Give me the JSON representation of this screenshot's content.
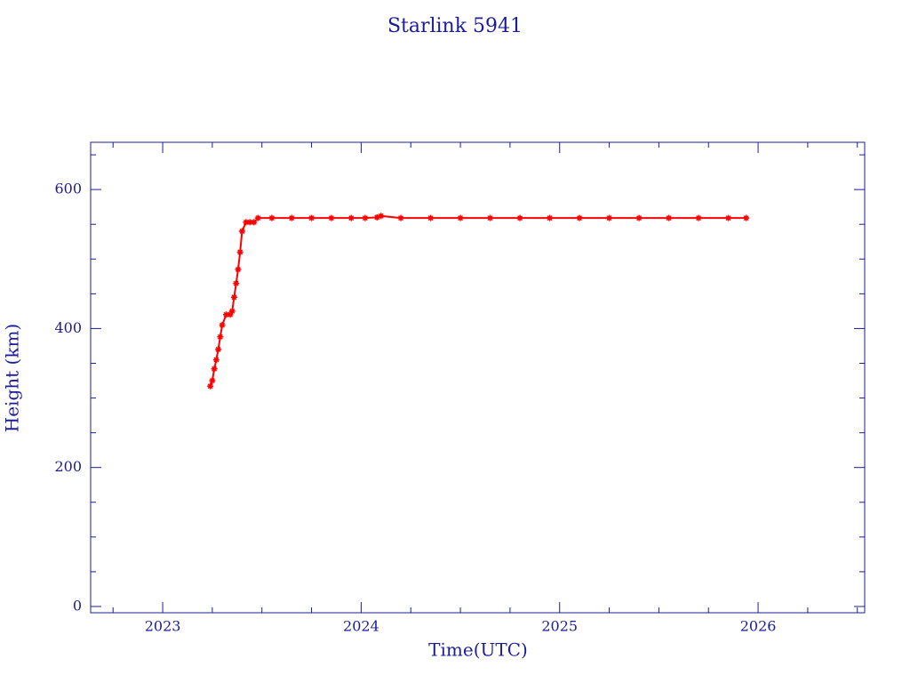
{
  "chart_data": {
    "type": "line",
    "title": "Starlink 5941",
    "x_label": "Time(UTC)",
    "y_label": "Height (km)",
    "x": [
      2023.24,
      2023.25,
      2023.26,
      2023.27,
      2023.28,
      2023.29,
      2023.3,
      2023.32,
      2023.34,
      2023.35,
      2023.36,
      2023.37,
      2023.38,
      2023.39,
      2023.4,
      2023.42,
      2023.44,
      2023.46,
      2023.48,
      2023.55,
      2023.65,
      2023.75,
      2023.85,
      2023.95,
      2024.02,
      2024.08,
      2024.1,
      2024.2,
      2024.35,
      2024.5,
      2024.65,
      2024.8,
      2024.95,
      2025.1,
      2025.25,
      2025.4,
      2025.55,
      2025.7,
      2025.85,
      2025.94
    ],
    "series": [
      {
        "color": "#ff0000",
        "values": [
          317,
          325,
          342,
          355,
          370,
          388,
          405,
          420,
          420,
          425,
          445,
          465,
          485,
          510,
          540,
          553,
          553,
          553,
          559,
          559,
          559,
          559,
          559,
          559,
          559,
          560,
          562,
          559,
          559,
          559,
          559,
          559,
          559,
          559,
          559,
          559,
          559,
          559,
          559,
          559
        ]
      }
    ],
    "xlim": [
      2022.637,
      2026.537
    ],
    "xticks": [
      2023,
      2024,
      2025,
      2026
    ],
    "xminorticks": [
      2022.75,
      2023.25,
      2023.5,
      2023.75,
      2024.25,
      2024.5,
      2024.75,
      2025.25,
      2025.5,
      2025.75,
      2026.25,
      2026.5
    ],
    "ylim": [
      -9,
      668
    ],
    "yticks": [
      0,
      200,
      400,
      600
    ],
    "yminorticks": [
      50,
      100,
      150,
      250,
      300,
      350,
      450,
      500,
      550,
      650
    ],
    "axis_color": "#1c1c96"
  }
}
